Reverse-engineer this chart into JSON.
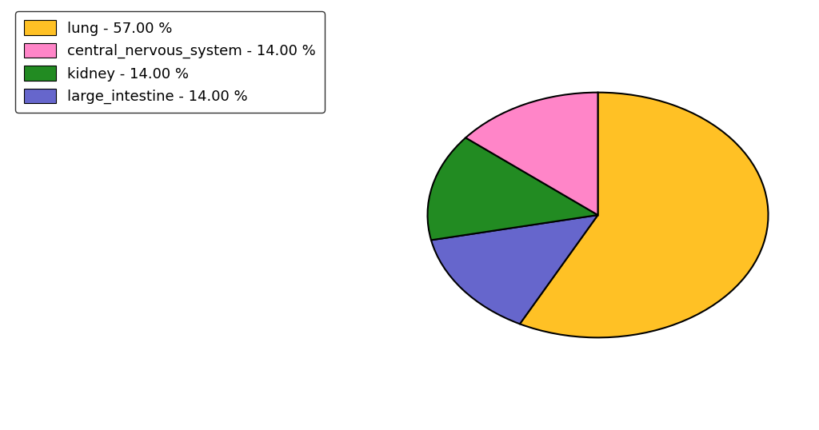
{
  "labels": [
    "lung",
    "large_intestine",
    "kidney",
    "central_nervous_system"
  ],
  "values": [
    57.0,
    14.0,
    14.0,
    14.0
  ],
  "colors": [
    "#FFC125",
    "#6666CC",
    "#228B22",
    "#FF85C8"
  ],
  "legend_labels": [
    "lung - 57.00 %",
    "central_nervous_system - 14.00 %",
    "kidney - 14.00 %",
    "large_intestine - 14.00 %"
  ],
  "legend_colors": [
    "#FFC125",
    "#FF85C8",
    "#228B22",
    "#6666CC"
  ],
  "startangle": 90,
  "figsize": [
    10.24,
    5.38
  ],
  "dpi": 100,
  "ellipse_aspect": 0.72
}
